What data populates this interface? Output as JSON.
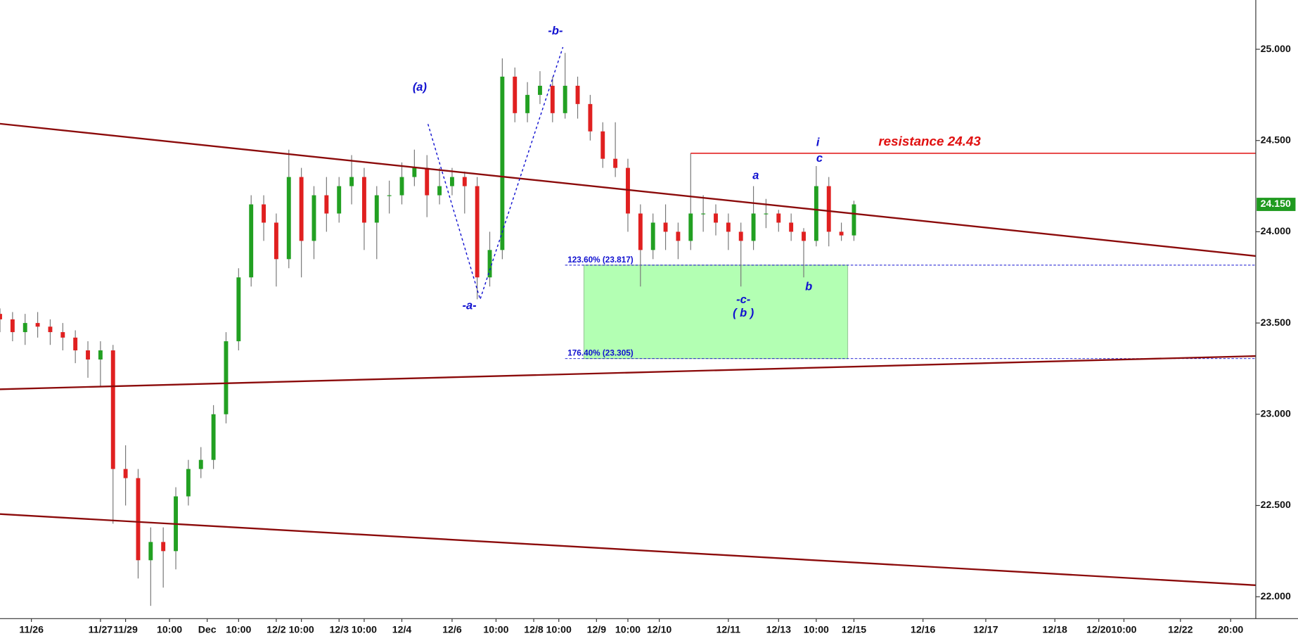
{
  "chart_data": {
    "type": "candlestick",
    "xlim": [
      0,
      200
    ],
    "ylim": [
      21.88,
      25.27
    ],
    "yticks": [
      {
        "value": 22.0,
        "label": "22.000"
      },
      {
        "value": 22.5,
        "label": "22.500"
      },
      {
        "value": 23.0,
        "label": "23.000"
      },
      {
        "value": 23.5,
        "label": "23.500"
      },
      {
        "value": 24.0,
        "label": "24.000"
      },
      {
        "value": 24.5,
        "label": "24.500"
      },
      {
        "value": 25.0,
        "label": "25.000"
      }
    ],
    "xticks": [
      {
        "value": 5,
        "label": "11/26"
      },
      {
        "value": 16,
        "label": "11/27"
      },
      {
        "value": 20,
        "label": "11/29"
      },
      {
        "value": 27,
        "label": "10:00"
      },
      {
        "value": 33,
        "label": "Dec"
      },
      {
        "value": 38,
        "label": "10:00"
      },
      {
        "value": 44,
        "label": "12/2"
      },
      {
        "value": 48,
        "label": "10:00"
      },
      {
        "value": 54,
        "label": "12/3"
      },
      {
        "value": 58,
        "label": "10:00"
      },
      {
        "value": 64,
        "label": "12/4"
      },
      {
        "value": 72,
        "label": "12/6"
      },
      {
        "value": 79,
        "label": "10:00"
      },
      {
        "value": 85,
        "label": "12/8"
      },
      {
        "value": 89,
        "label": "10:00"
      },
      {
        "value": 95,
        "label": "12/9"
      },
      {
        "value": 100,
        "label": "10:00"
      },
      {
        "value": 105,
        "label": "12/10"
      },
      {
        "value": 116,
        "label": "12/11"
      },
      {
        "value": 124,
        "label": "12/13"
      },
      {
        "value": 130,
        "label": "10:00"
      },
      {
        "value": 136,
        "label": "12/15"
      },
      {
        "value": 147,
        "label": "12/16"
      },
      {
        "value": 157,
        "label": "12/17"
      },
      {
        "value": 168,
        "label": "12/18"
      },
      {
        "value": 175,
        "label": "12/20"
      },
      {
        "value": 179,
        "label": "10:00"
      },
      {
        "value": 188,
        "label": "12/22"
      },
      {
        "value": 196,
        "label": "20:00"
      }
    ],
    "up_color": "#22a022",
    "down_color": "#e02020",
    "x": [
      0,
      2,
      4,
      6,
      8,
      10,
      12,
      14,
      16,
      18,
      20,
      22,
      24,
      26,
      28,
      30,
      32,
      34,
      36,
      38,
      40,
      42,
      44,
      46,
      48,
      50,
      52,
      54,
      56,
      58,
      60,
      62,
      64,
      66,
      68,
      70,
      72,
      74,
      76,
      78,
      80,
      82,
      84,
      86,
      88,
      90,
      92,
      94,
      96,
      98,
      100,
      102,
      104,
      106,
      108,
      110,
      112,
      114,
      116,
      118,
      120,
      122,
      124,
      126,
      128,
      130,
      132,
      134,
      136
    ],
    "open": [
      23.55,
      23.52,
      23.45,
      23.5,
      23.48,
      23.45,
      23.42,
      23.35,
      23.3,
      23.35,
      22.7,
      22.65,
      22.2,
      22.3,
      22.25,
      22.55,
      22.7,
      22.75,
      23.0,
      23.4,
      23.75,
      24.15,
      24.05,
      23.85,
      24.3,
      23.95,
      24.2,
      24.1,
      24.25,
      24.3,
      24.05,
      24.2,
      24.2,
      24.3,
      24.35,
      24.2,
      24.25,
      24.3,
      24.25,
      23.75,
      23.9,
      24.85,
      24.65,
      24.75,
      24.8,
      24.65,
      24.8,
      24.7,
      24.55,
      24.4,
      24.35,
      24.1,
      23.9,
      24.05,
      24.0,
      23.95,
      24.1,
      24.1,
      24.05,
      24.0,
      23.95,
      24.1,
      24.1,
      24.05,
      24.0,
      23.95,
      24.25,
      24.0,
      23.98
    ],
    "high": [
      23.58,
      23.56,
      23.55,
      23.56,
      23.52,
      23.5,
      23.46,
      23.4,
      23.4,
      23.38,
      22.83,
      22.7,
      22.38,
      22.38,
      22.6,
      22.75,
      22.82,
      23.05,
      23.45,
      23.8,
      24.2,
      24.2,
      24.1,
      24.45,
      24.35,
      24.25,
      24.3,
      24.3,
      24.42,
      24.35,
      24.25,
      24.28,
      24.38,
      24.45,
      24.42,
      24.35,
      24.35,
      24.33,
      24.3,
      24.0,
      24.95,
      24.9,
      24.82,
      24.88,
      24.85,
      24.98,
      24.85,
      24.75,
      24.6,
      24.6,
      24.4,
      24.15,
      24.1,
      24.15,
      24.05,
      24.43,
      24.2,
      24.15,
      24.1,
      24.05,
      24.25,
      24.18,
      24.12,
      24.1,
      24.02,
      24.36,
      24.3,
      24.05,
      24.17
    ],
    "low": [
      23.45,
      23.4,
      23.38,
      23.42,
      23.38,
      23.35,
      23.28,
      23.2,
      23.15,
      22.4,
      22.5,
      22.1,
      21.95,
      22.05,
      22.15,
      22.5,
      22.65,
      22.7,
      22.95,
      23.35,
      23.7,
      23.95,
      23.7,
      23.8,
      23.75,
      23.85,
      24.0,
      24.05,
      24.15,
      23.9,
      23.85,
      24.1,
      24.15,
      24.25,
      24.08,
      24.15,
      24.2,
      24.1,
      23.63,
      23.7,
      23.85,
      24.6,
      24.6,
      24.7,
      24.6,
      24.62,
      24.62,
      24.5,
      24.35,
      24.3,
      24.0,
      23.7,
      23.85,
      23.9,
      23.85,
      23.9,
      24.0,
      23.98,
      23.9,
      23.7,
      23.9,
      24.02,
      24.0,
      23.95,
      23.75,
      23.92,
      23.92,
      23.95,
      23.95
    ],
    "close": [
      23.52,
      23.45,
      23.5,
      23.48,
      23.45,
      23.42,
      23.35,
      23.3,
      23.35,
      22.7,
      22.65,
      22.2,
      22.3,
      22.25,
      22.55,
      22.7,
      22.75,
      23.0,
      23.4,
      23.75,
      24.15,
      24.05,
      23.85,
      24.3,
      23.95,
      24.2,
      24.1,
      24.25,
      24.3,
      24.05,
      24.2,
      24.2,
      24.3,
      24.35,
      24.2,
      24.25,
      24.3,
      24.25,
      23.75,
      23.9,
      24.85,
      24.65,
      24.75,
      24.8,
      24.65,
      24.8,
      24.7,
      24.55,
      24.4,
      24.35,
      24.1,
      23.9,
      24.05,
      24.0,
      23.95,
      24.1,
      24.1,
      24.05,
      24.0,
      23.95,
      24.1,
      24.1,
      24.05,
      24.0,
      23.95,
      24.25,
      24.0,
      23.98,
      24.15
    ],
    "last_price": {
      "value": 24.15,
      "label": "24.150"
    },
    "last_price_color": "#1f9a1f",
    "trendlines": [
      {
        "x": [
          0,
          200
        ],
        "y": [
          24.592,
          23.867
        ],
        "color": "#8b0a0a"
      },
      {
        "x": [
          0,
          200
        ],
        "y": [
          23.137,
          23.319
        ],
        "color": "#8b0a0a"
      },
      {
        "x": [
          0,
          200
        ],
        "y": [
          22.453,
          22.063
        ],
        "color": "#8b0a0a"
      }
    ],
    "resistance": {
      "label": "resistance 24.43",
      "value": 24.43,
      "x": [
        110,
        200
      ],
      "color": "#e01010"
    },
    "fib_levels": [
      {
        "label": "123.60% (23.817)",
        "value": 23.817,
        "x": [
          90,
          200
        ]
      },
      {
        "label": "176.40% (23.305)",
        "value": 23.305,
        "x": [
          90,
          200
        ]
      }
    ],
    "zone": {
      "x": [
        93,
        135
      ],
      "y": [
        23.305,
        23.817
      ],
      "color": "#b3ffb3"
    },
    "wave_labels": [
      "(a)",
      "-b-",
      "-a-",
      "-c-",
      "( b )",
      "a",
      "i",
      "c",
      "b"
    ]
  }
}
